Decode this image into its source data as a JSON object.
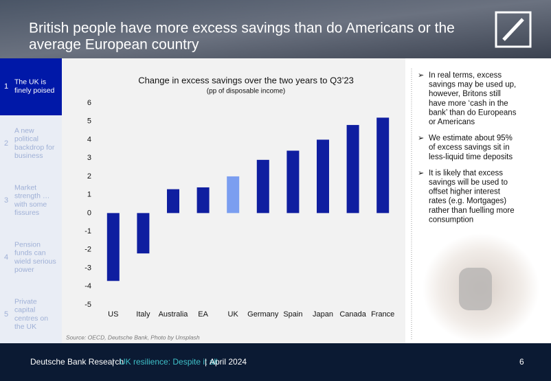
{
  "header": {
    "title_lines": [
      "British people have more excess savings than do Americans or the",
      "average European country"
    ]
  },
  "sidebar": [
    {
      "number": "1",
      "lines": [
        "The UK is",
        "finely poised"
      ],
      "active": true
    },
    {
      "number": "2",
      "lines": [
        "A new",
        "political",
        "backdrop for",
        "business"
      ],
      "active": false
    },
    {
      "number": "3",
      "lines": [
        "Market",
        "strength …",
        "with some",
        "fissures"
      ],
      "active": false
    },
    {
      "number": "4",
      "lines": [
        "Pension",
        "funds can",
        "wield serious",
        "power"
      ],
      "active": false
    },
    {
      "number": "5",
      "lines": [
        "Private",
        "capital",
        "centres on",
        "the UK"
      ],
      "active": false
    }
  ],
  "chart_data": {
    "type": "bar",
    "title": "Change in excess savings over the two years to Q3’23",
    "subtitle": "(pp of disposable income)",
    "categories": [
      "US",
      "Italy",
      "Australia",
      "EA",
      "UK",
      "Germany",
      "Spain",
      "Japan",
      "Canada",
      "France"
    ],
    "values": [
      -3.7,
      -2.2,
      1.3,
      1.4,
      2.0,
      2.9,
      3.4,
      4.0,
      4.8,
      5.2
    ],
    "colors": [
      "#0f1ea0",
      "#0f1ea0",
      "#0f1ea0",
      "#0f1ea0",
      "#7b9ef0",
      "#0f1ea0",
      "#0f1ea0",
      "#0f1ea0",
      "#0f1ea0",
      "#0f1ea0"
    ],
    "ylim": [
      -5,
      6
    ],
    "yticks": [
      -5,
      -4,
      -3,
      -2,
      -1,
      0,
      1,
      2,
      3,
      4,
      5,
      6
    ],
    "grid": false,
    "source": "Source: OECD, Deutsche Bank, Photo by Unsplash"
  },
  "bullets": [
    [
      "In real terms, excess",
      "savings may be used up,",
      "however, Britons still",
      "have more ‘cash in the",
      "bank’ than do Europeans",
      "or Americans"
    ],
    [
      "We estimate about 95%",
      "of excess savings sit in",
      "less-liquid time deposits"
    ],
    [
      "It is likely that excess",
      "savings will be used to",
      "offset higher interest",
      "rates (e.g. Mortgages)",
      "rather than fuelling more",
      "consumption"
    ]
  ],
  "footer": {
    "brand": "Deutsche Bank Research",
    "separator": "|",
    "series": "UK resilience: Despite it all",
    "date": "April 2024",
    "page": "6"
  }
}
